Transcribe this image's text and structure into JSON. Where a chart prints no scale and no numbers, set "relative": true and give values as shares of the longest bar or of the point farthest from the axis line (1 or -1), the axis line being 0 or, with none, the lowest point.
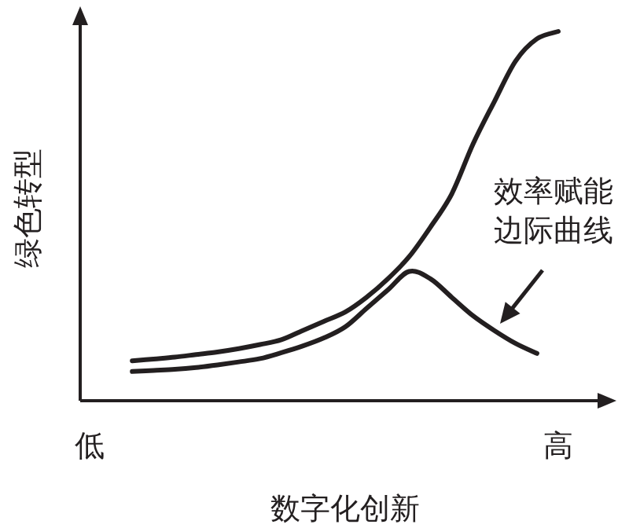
{
  "chart_data": {
    "type": "line",
    "relative": true,
    "ylabel": "绿色转型",
    "xlabel": "数字化创新",
    "categories": [
      "低",
      null,
      null,
      null,
      null,
      null,
      null,
      null,
      null,
      null,
      null,
      null,
      null,
      null,
      null,
      null,
      null,
      null,
      null,
      null,
      null,
      null,
      "高"
    ],
    "series": [
      {
        "color": "#231f20",
        "values": [
          null,
          null,
          0.108,
          0.113,
          0.118,
          0.125,
          0.132,
          0.141,
          0.152,
          0.165,
          0.19,
          0.215,
          0.24,
          0.28,
          0.33,
          0.39,
          0.47,
          0.56,
          0.695,
          0.81,
          0.92,
          0.98,
          1.0
        ]
      },
      {
        "color": "#231f20",
        "values": [
          null,
          null,
          0.079,
          0.082,
          0.085,
          0.09,
          0.097,
          0.105,
          0.114,
          0.13,
          0.148,
          0.17,
          0.2,
          0.25,
          0.3,
          0.35,
          0.33,
          0.28,
          0.23,
          0.19,
          0.155,
          0.128,
          null
        ]
      }
    ],
    "annotations": [
      "效率赋能边际曲线"
    ],
    "marker": "none",
    "line_style": "solid"
  }
}
